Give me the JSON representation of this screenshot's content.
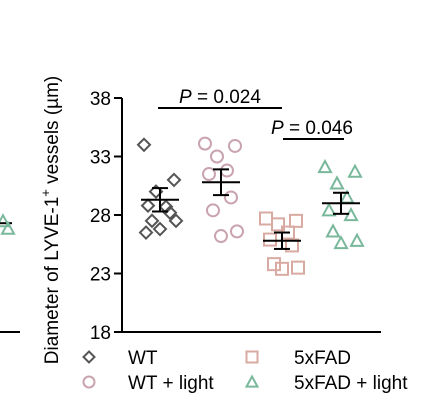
{
  "chart_data": {
    "type": "scatter",
    "ylabel": "Diameter of LYVE-1+ vessels (µm)",
    "ylabel_main": "Diameter of LYVE-1",
    "ylabel_sup": "+",
    "ylabel_tail": " vessels (µm)",
    "ylim": [
      18,
      38
    ],
    "yticks": [
      "18",
      "23",
      "28",
      "33",
      "38"
    ],
    "grid": false,
    "legend_position": "bottom",
    "colors": {
      "WT": "#555555",
      "WT + light": "#c9a3ad",
      "5xFAD": "#d8aaa2",
      "5xFAD + light": "#7ab89c",
      "clipped_group": "#7ab89c"
    },
    "series": [
      {
        "name": "WT",
        "marker": "diamond",
        "mean": 29.3,
        "sem": 1.0,
        "values": [
          34.0,
          31.0,
          30.0,
          28.7,
          28.8,
          28.2,
          27.5,
          27.5,
          26.8,
          26.5
        ]
      },
      {
        "name": "WT + light",
        "marker": "circle",
        "mean": 30.8,
        "sem": 1.1,
        "values": [
          34.1,
          33.9,
          33.0,
          31.8,
          31.5,
          29.5,
          28.4,
          26.6,
          26.2
        ]
      },
      {
        "name": "5xFAD",
        "marker": "square",
        "mean": 25.8,
        "sem": 0.7,
        "values": [
          27.7,
          27.5,
          27.2,
          26.5,
          25.9,
          25.4,
          23.8,
          23.5,
          23.4
        ]
      },
      {
        "name": "5xFAD + light",
        "marker": "triangle",
        "mean": 29.0,
        "sem": 0.9,
        "values": [
          32.1,
          31.7,
          30.7,
          29.5,
          28.4,
          28.0,
          26.6,
          25.8,
          25.6
        ]
      }
    ],
    "comparisons": [
      {
        "label": "P = 0.024",
        "p": "P",
        "eq": "=",
        "val": "0.024",
        "from": "WT",
        "to": "5xFAD"
      },
      {
        "label": "P = 0.046",
        "p": "P",
        "eq": "=",
        "val": "0.046",
        "from": "5xFAD",
        "to": "5xFAD + light"
      }
    ],
    "clipped_left_group": {
      "mean": 27.3,
      "values": [
        27.3,
        27.0
      ]
    }
  }
}
